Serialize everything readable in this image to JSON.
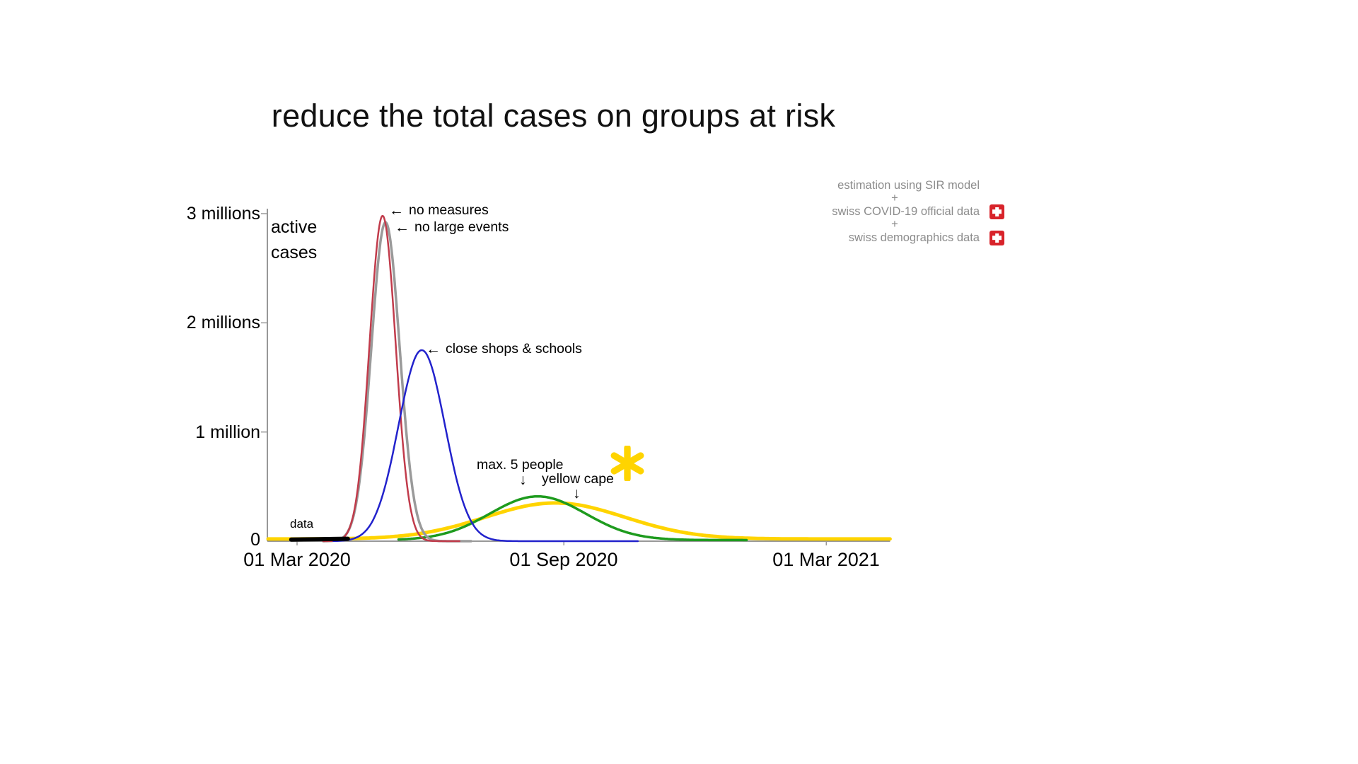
{
  "slide": {
    "title": "reduce the total cases on groups at risk",
    "background": "#ffffff"
  },
  "attribution": {
    "text_color": "#8c8c8c",
    "flag_color": "#d8232a",
    "rows": [
      {
        "text": "estimation using SIR model",
        "flag": false
      },
      {
        "text": "+",
        "flag": false
      },
      {
        "text": "swiss COVID-19 official data",
        "flag": true
      },
      {
        "text": "+",
        "flag": false
      },
      {
        "text": "swiss demographics data",
        "flag": true
      }
    ]
  },
  "icons": {
    "arrow_left": "←",
    "arrow_down": "↓"
  },
  "chart_data": {
    "type": "line",
    "title": "reduce the total cases on groups at risk",
    "ylabel": "active cases",
    "ylabel_two_lines": "active\ncases",
    "x_epoch": "days since 01 Mar 2020",
    "x_axis_days": [
      -20,
      409
    ],
    "ylim_millions": [
      0,
      3.05
    ],
    "grid": false,
    "legend": "none (arrow annotations instead)",
    "yticks": [
      {
        "value": 0,
        "label": "0"
      },
      {
        "value": 1,
        "label": "1 million"
      },
      {
        "value": 2,
        "label": "2 millions"
      },
      {
        "value": 3,
        "label": "3 millions"
      }
    ],
    "xticks": [
      {
        "day": 0,
        "label": "01 Mar 2020"
      },
      {
        "day": 184,
        "label": "01 Sep 2020"
      },
      {
        "day": 365,
        "label": "01 Mar 2021"
      }
    ],
    "axis_color": "#777777",
    "tick_color": "#999999",
    "star_color": "#ffd400",
    "series": [
      {
        "name": "yellow cape",
        "color": "#ffd400",
        "line_width": 5,
        "model": "gaussian",
        "peak_day": 178,
        "peak_millions": 0.33,
        "sigma_days": 48,
        "baseline_millions": 0.02,
        "range_days": [
          -20,
          409
        ]
      },
      {
        "name": "max. 5 people",
        "color": "#1e9b1e",
        "line_width": 3.5,
        "model": "gaussian",
        "peak_day": 166,
        "peak_millions": 0.4,
        "sigma_days": 33,
        "baseline_millions": 0.01,
        "range_days": [
          70,
          310
        ]
      },
      {
        "name": "no large events",
        "color": "#9a9a9a",
        "line_width": 3.5,
        "model": "gaussian",
        "peak_day": 61,
        "peak_millions": 2.92,
        "sigma_days": 9.8,
        "baseline_millions": 0,
        "range_days": [
          18,
          120
        ]
      },
      {
        "name": "no measures",
        "color": "#c13b4b",
        "line_width": 2.5,
        "model": "gaussian",
        "peak_day": 59,
        "peak_millions": 2.98,
        "sigma_days": 9,
        "baseline_millions": 0,
        "range_days": [
          18,
          112
        ]
      },
      {
        "name": "close shops & schools",
        "color": "#2222cc",
        "line_width": 2.5,
        "model": "gaussian",
        "peak_day": 86,
        "peak_millions": 1.75,
        "sigma_days": 16,
        "baseline_millions": 0,
        "range_days": [
          25,
          235
        ]
      },
      {
        "name": "data",
        "color": "#000000",
        "line_width": 6,
        "model": "points",
        "points": [
          [
            -4,
            0.015
          ],
          [
            5,
            0.016
          ],
          [
            15,
            0.018
          ],
          [
            25,
            0.02
          ],
          [
            35,
            0.022
          ]
        ]
      }
    ],
    "annotations": {
      "no_measures": "no measures",
      "no_large_events": "no large events",
      "close_shops": "close shops & schools",
      "max_5_people": "max. 5 people",
      "yellow_cape": "yellow cape",
      "data": "data"
    }
  }
}
